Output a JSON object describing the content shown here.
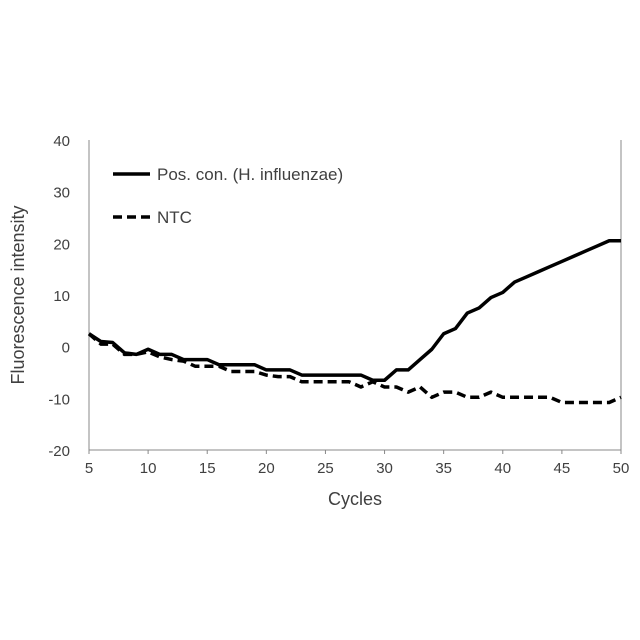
{
  "chart_data": {
    "type": "line",
    "title": "",
    "xlabel": "Cycles",
    "ylabel": "Fluorescence intensity",
    "xlim": [
      5,
      50
    ],
    "ylim": [
      -20,
      40
    ],
    "xticks": [
      5,
      10,
      15,
      20,
      25,
      30,
      35,
      40,
      45,
      50
    ],
    "yticks": [
      -20,
      -10,
      0,
      10,
      20,
      30,
      40
    ],
    "grid": false,
    "legend_position": "top-left",
    "x": [
      5,
      6,
      7,
      8,
      9,
      10,
      11,
      12,
      13,
      14,
      15,
      16,
      17,
      18,
      19,
      20,
      21,
      22,
      23,
      24,
      25,
      26,
      27,
      28,
      29,
      30,
      31,
      32,
      33,
      34,
      35,
      36,
      37,
      38,
      39,
      40,
      41,
      42,
      43,
      44,
      45,
      46,
      47,
      48,
      49,
      50
    ],
    "series": [
      {
        "name": "Pos. con. (H. influenzae)",
        "style": "solid",
        "color": "#000000",
        "values": [
          2.5,
          1,
          0.8,
          -1.2,
          -1.5,
          -0.5,
          -1.5,
          -1.5,
          -2.5,
          -2.5,
          -2.5,
          -3.5,
          -3.5,
          -3.5,
          -3.5,
          -4.5,
          -4.5,
          -4.5,
          -5.5,
          -5.5,
          -5.5,
          -5.5,
          -5.5,
          -5.5,
          -6.5,
          -6.5,
          -4.5,
          -4.5,
          -2.5,
          -0.5,
          2.5,
          3.5,
          6.5,
          7.5,
          9.5,
          10.5,
          12.5,
          13.5,
          14.5,
          15.5,
          16.5,
          17.5,
          18.5,
          19.5,
          20.5,
          20.5
        ]
      },
      {
        "name": "NTC",
        "style": "dashed",
        "color": "#000000",
        "values": [
          2.5,
          0.5,
          0.5,
          -1.5,
          -1.5,
          -1,
          -2,
          -2.5,
          -2.8,
          -3.8,
          -3.8,
          -3.8,
          -4.8,
          -4.8,
          -4.8,
          -5.5,
          -5.8,
          -5.8,
          -6.8,
          -6.8,
          -6.8,
          -6.8,
          -6.8,
          -7.8,
          -6.8,
          -7.8,
          -7.8,
          -8.8,
          -7.8,
          -9.8,
          -8.8,
          -8.8,
          -9.8,
          -9.8,
          -8.8,
          -9.8,
          -9.8,
          -9.8,
          -9.8,
          -9.8,
          -10.8,
          -10.8,
          -10.8,
          -10.8,
          -10.8,
          -9.8
        ]
      }
    ]
  }
}
